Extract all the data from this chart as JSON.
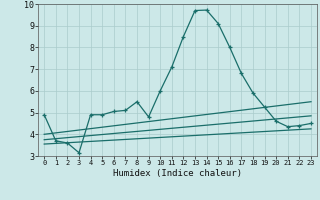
{
  "xlabel": "Humidex (Indice chaleur)",
  "bg_color": "#cce8e8",
  "grid_color": "#aacccc",
  "line_color": "#1a6e6a",
  "xlim": [
    -0.5,
    23.5
  ],
  "ylim": [
    3,
    10
  ],
  "xticks": [
    0,
    1,
    2,
    3,
    4,
    5,
    6,
    7,
    8,
    9,
    10,
    11,
    12,
    13,
    14,
    15,
    16,
    17,
    18,
    19,
    20,
    21,
    22,
    23
  ],
  "yticks": [
    3,
    4,
    5,
    6,
    7,
    8,
    9,
    10
  ],
  "series1_x": [
    0,
    1,
    2,
    3,
    4,
    5,
    6,
    7,
    8,
    9,
    10,
    11,
    12,
    13,
    14,
    15,
    16,
    17,
    18,
    19,
    20,
    21,
    22,
    23
  ],
  "series1_y": [
    4.9,
    3.7,
    3.6,
    3.15,
    4.9,
    4.9,
    5.05,
    5.1,
    5.5,
    4.8,
    6.0,
    7.1,
    8.5,
    9.7,
    9.72,
    9.1,
    8.0,
    6.8,
    5.9,
    5.25,
    4.6,
    4.35,
    4.4,
    4.5
  ],
  "series2_x": [
    0,
    23
  ],
  "series2_y": [
    3.55,
    4.25
  ],
  "series3_x": [
    0,
    23
  ],
  "series3_y": [
    3.75,
    4.85
  ],
  "series4_x": [
    0,
    23
  ],
  "series4_y": [
    4.0,
    5.5
  ]
}
